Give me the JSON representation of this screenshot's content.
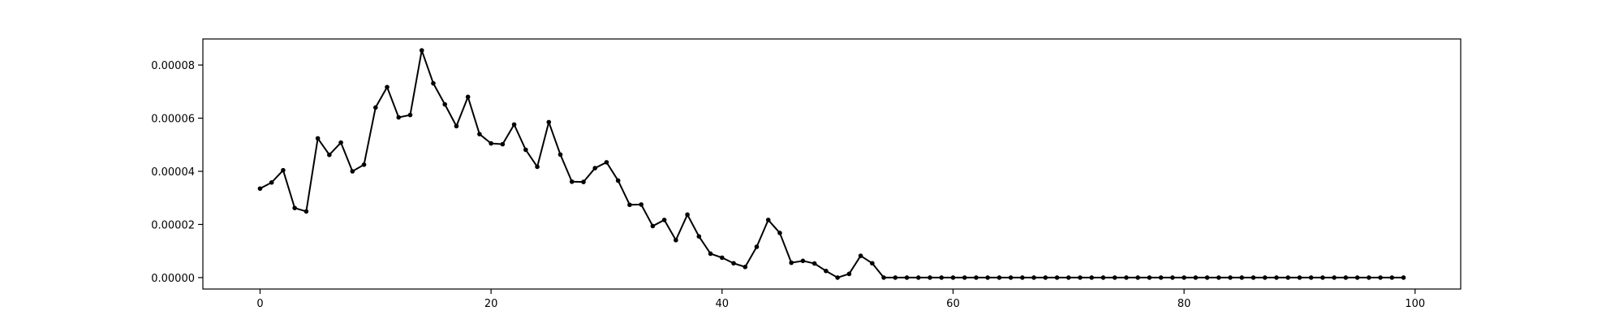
{
  "chart_data": {
    "type": "line",
    "title": "",
    "xlabel": "",
    "ylabel": "",
    "xlim": [
      -4.95,
      103.95
    ],
    "ylim": [
      -4.3e-06,
      8.98e-05
    ],
    "xticks": [
      0,
      20,
      40,
      60,
      80,
      100
    ],
    "xtick_labels": [
      "0",
      "20",
      "40",
      "60",
      "80",
      "100"
    ],
    "yticks": [
      0,
      2e-05,
      4e-05,
      6e-05,
      8e-05
    ],
    "ytick_labels": [
      "0.00000",
      "0.00002",
      "0.00004",
      "0.00006",
      "0.00008"
    ],
    "grid": false,
    "legend": "none",
    "series": [
      {
        "color": "#000000",
        "marker": "circle",
        "x": [
          0,
          1,
          2,
          3,
          4,
          5,
          6,
          7,
          8,
          9,
          10,
          11,
          12,
          13,
          14,
          15,
          16,
          17,
          18,
          19,
          20,
          21,
          22,
          23,
          24,
          25,
          26,
          27,
          28,
          29,
          30,
          31,
          32,
          33,
          34,
          35,
          36,
          37,
          38,
          39,
          40,
          41,
          42,
          43,
          44,
          45,
          46,
          47,
          48,
          49,
          50,
          51,
          52,
          53,
          54,
          55,
          56,
          57,
          58,
          59,
          60,
          61,
          62,
          63,
          64,
          65,
          66,
          67,
          68,
          69,
          70,
          71,
          72,
          73,
          74,
          75,
          76,
          77,
          78,
          79,
          80,
          81,
          82,
          83,
          84,
          85,
          86,
          87,
          88,
          89,
          90,
          91,
          92,
          93,
          94,
          95,
          96,
          97,
          98,
          99
        ],
        "y": [
          3.35e-05,
          3.58e-05,
          4.04e-05,
          2.62e-05,
          2.49e-05,
          5.24e-05,
          4.62e-05,
          5.08e-05,
          4e-05,
          4.25e-05,
          6.4e-05,
          7.17e-05,
          6.03e-05,
          6.12e-05,
          8.55e-05,
          7.31e-05,
          6.52e-05,
          5.7e-05,
          6.8e-05,
          5.4e-05,
          5.05e-05,
          5.02e-05,
          5.76e-05,
          4.81e-05,
          4.17e-05,
          5.85e-05,
          4.63e-05,
          3.61e-05,
          3.6e-05,
          4.12e-05,
          4.34e-05,
          3.65e-05,
          2.74e-05,
          2.75e-05,
          1.94e-05,
          2.17e-05,
          1.41e-05,
          2.37e-05,
          1.55e-05,
          9e-06,
          7.5e-06,
          5.4e-06,
          4e-06,
          1.16e-05,
          2.17e-05,
          1.68e-05,
          5.6e-06,
          6.3e-06,
          5.3e-06,
          2.5e-06,
          0.0,
          1.4e-06,
          8.2e-06,
          5.4e-06,
          0.0,
          0,
          0,
          0,
          0,
          0,
          0,
          0,
          0,
          0,
          0,
          0,
          0,
          0,
          0,
          0,
          0,
          0,
          0,
          0,
          0,
          0,
          0,
          0,
          0,
          0,
          0,
          0,
          0,
          0,
          0,
          0,
          0,
          0,
          0,
          0,
          0,
          0,
          0,
          0,
          0,
          0,
          0,
          0,
          0,
          0
        ]
      }
    ]
  }
}
